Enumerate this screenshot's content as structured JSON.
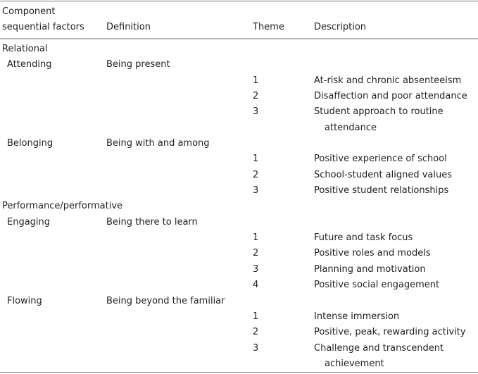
{
  "headers": {
    "factors_line1": "Component",
    "factors_line2": "sequential factors",
    "definition": "Definition",
    "theme": "Theme",
    "description": "Description"
  },
  "rows": [
    {
      "type": "category",
      "text": "Relational"
    },
    {
      "type": "factor",
      "factor": "Attending",
      "definition": "Being present"
    },
    {
      "type": "theme",
      "theme": "1",
      "description": "At-risk and chronic absenteeism"
    },
    {
      "type": "theme",
      "theme": "2",
      "description": "Disaffection and poor attendance"
    },
    {
      "type": "theme",
      "theme": "3",
      "description": "Student approach to routine attendance"
    },
    {
      "type": "factor",
      "factor": "Belonging",
      "definition": "Being with and among"
    },
    {
      "type": "theme",
      "theme": "1",
      "description": "Positive experience of school"
    },
    {
      "type": "theme",
      "theme": "2",
      "description": "School-student aligned values"
    },
    {
      "type": "theme",
      "theme": "3",
      "description": "Positive student relationships"
    },
    {
      "type": "category",
      "text": "Performance/performative"
    },
    {
      "type": "factor",
      "factor": "Engaging",
      "definition": "Being there to learn"
    },
    {
      "type": "theme",
      "theme": "1",
      "description": "Future and task focus"
    },
    {
      "type": "theme",
      "theme": "2",
      "description": "Positive roles and models"
    },
    {
      "type": "theme",
      "theme": "3",
      "description": "Planning and motivation"
    },
    {
      "type": "theme",
      "theme": "4",
      "description": "Positive social engagement"
    },
    {
      "type": "factor",
      "factor": "Flowing",
      "definition": "Being beyond the familiar"
    },
    {
      "type": "theme",
      "theme": "1",
      "description": "Intense immersion"
    },
    {
      "type": "theme",
      "theme": "2",
      "description": "Positive, peak, rewarding activity"
    },
    {
      "type": "theme",
      "theme": "3",
      "description": "Challenge and transcendent achievement"
    }
  ]
}
